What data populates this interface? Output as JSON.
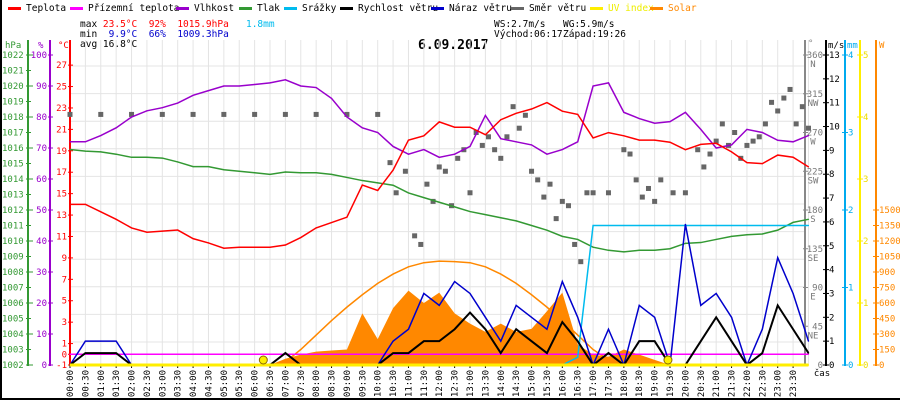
{
  "legend": [
    {
      "label": "Teplota",
      "color": "#ff0000"
    },
    {
      "label": "Přízemní teplota",
      "color": "#ff00ff"
    },
    {
      "label": "Vlhkost",
      "color": "#9900cc"
    },
    {
      "label": "Tlak",
      "color": "#339933"
    },
    {
      "label": "Srážky",
      "color": "#00bbee"
    },
    {
      "label": "Rychlost větru",
      "color": "#000000"
    },
    {
      "label": "Náraz větru",
      "color": "#0000cc"
    },
    {
      "label": "Směr větru",
      "color": "#666666"
    },
    {
      "label": "UV index",
      "color": "#ffee00"
    },
    {
      "label": "Solar",
      "color": "#ff8800"
    }
  ],
  "stats": {
    "max_label": "max",
    "max_temp": "23.5°C",
    "max_hum": "92%",
    "max_press": "1015.9hPa",
    "max_rain": "1.8mm",
    "min_label": "min",
    "min_temp": "9.9°C",
    "min_hum": "66%",
    "min_press": "1009.3hPa",
    "avg_label": "avg",
    "avg_temp": "16.8°C",
    "ws": "WS:2.7m/s",
    "wg": "WG:5.9m/s",
    "sunrise": "Východ:06:17",
    "sunset": "Západ:19:26"
  },
  "chart_data": {
    "type": "line",
    "title": "6.09.2017",
    "xlabel": "čas",
    "x_ticks": [
      "00:00",
      "00:30",
      "01:00",
      "01:30",
      "02:00",
      "02:30",
      "03:00",
      "03:30",
      "04:00",
      "04:30",
      "05:00",
      "05:30",
      "06:00",
      "06:30",
      "07:00",
      "07:30",
      "08:00",
      "08:30",
      "09:00",
      "09:30",
      "10:00",
      "10:30",
      "11:00",
      "11:30",
      "12:00",
      "12:30",
      "13:00",
      "13:30",
      "14:00",
      "14:30",
      "15:00",
      "15:30",
      "16:00",
      "16:30",
      "17:00",
      "17:30",
      "18:00",
      "18:30",
      "19:00",
      "19:30",
      "20:00",
      "20:30",
      "21:00",
      "21:30",
      "22:00",
      "22:30",
      "23:00",
      "23:30"
    ],
    "axes": {
      "pressure": {
        "unit": "hPa",
        "range": [
          1002,
          1022
        ],
        "ticks": [
          "1022",
          "1021",
          "1020",
          "1019",
          "1018",
          "1017",
          "1016",
          "1015",
          "1014",
          "1013",
          "1012",
          "1011",
          "1010",
          "1009",
          "1008",
          "1007",
          "1006",
          "1005",
          "1004",
          "1003",
          "1002"
        ]
      },
      "humidity": {
        "unit": "%",
        "range": [
          0,
          100
        ],
        "ticks": [
          "100",
          "90",
          "80",
          "70",
          "60",
          "50",
          "40",
          "30",
          "20",
          "10",
          "0"
        ]
      },
      "temperature": {
        "unit": "°C",
        "range": [
          -1,
          28
        ],
        "ticks": [
          "27",
          "25",
          "23",
          "21",
          "19",
          "17",
          "15",
          "13",
          "11",
          "9",
          "7",
          "5",
          "3",
          "1",
          "0",
          "-1"
        ]
      },
      "direction": {
        "unit": "°",
        "range": [
          0,
          360
        ],
        "ticks": [
          {
            "v": "360",
            "d": "N"
          },
          {
            "v": "315",
            "d": "NW"
          },
          {
            "v": "270",
            "d": "W"
          },
          {
            "v": "225",
            "d": "SW"
          },
          {
            "v": "180",
            "d": "S"
          },
          {
            "v": "135",
            "d": "SE"
          },
          {
            "v": "90",
            "d": "E"
          },
          {
            "v": "45",
            "d": "NE"
          },
          {
            "v": "0",
            "d": ""
          }
        ]
      },
      "wind": {
        "unit": "m/s",
        "range": [
          0,
          13
        ],
        "ticks": [
          "13",
          "12",
          "11",
          "10",
          "9",
          "8",
          "7",
          "6",
          "5",
          "4",
          "3",
          "2",
          "1",
          "0"
        ]
      },
      "rain": {
        "unit": "mm",
        "range": [
          0,
          4
        ],
        "ticks": [
          "4",
          "3",
          "2",
          "1",
          "0"
        ]
      },
      "uv": {
        "unit": "",
        "range": [
          0,
          5
        ],
        "ticks": [
          "5",
          "4",
          "3",
          "2",
          "1",
          "0"
        ]
      },
      "solar": {
        "unit": "W",
        "range": [
          0,
          3000
        ],
        "ticks": [
          "1500",
          "1350",
          "1200",
          "1050",
          "900",
          "750",
          "600",
          "450",
          "300",
          "150",
          "0"
        ]
      }
    },
    "x_hours_step": 0.5,
    "series": [
      {
        "name": "Teplota",
        "axis": "temperature",
        "color": "#ff0000",
        "values": [
          14.0,
          14.0,
          13.3,
          12.6,
          11.8,
          11.4,
          11.5,
          11.6,
          10.8,
          10.4,
          9.9,
          10.0,
          10.0,
          10.0,
          10.2,
          10.9,
          11.8,
          12.3,
          12.8,
          15.8,
          15.3,
          17.2,
          20.0,
          20.4,
          21.7,
          21.2,
          21.2,
          20.5,
          21.9,
          22.5,
          22.9,
          23.5,
          22.7,
          22.4,
          20.2,
          20.7,
          20.4,
          20.0,
          20.0,
          19.8,
          19.1,
          19.6,
          19.7,
          18.9,
          17.9,
          17.8,
          18.6,
          18.4,
          17.5
        ]
      },
      {
        "name": "Přízemní teplota",
        "axis": "temperature",
        "color": "#ff00ff",
        "values": [
          0,
          0,
          0,
          0,
          0,
          0,
          0,
          0,
          0,
          0,
          0,
          0,
          0,
          0,
          0,
          0,
          0,
          0,
          0,
          0,
          0,
          0,
          0,
          0,
          0,
          0,
          0,
          0,
          0,
          0,
          0,
          0,
          0,
          0,
          0,
          0,
          0,
          0,
          0,
          0,
          0,
          0,
          0,
          0,
          0,
          0,
          0,
          0,
          0
        ]
      },
      {
        "name": "Vlhkost",
        "axis": "humidity",
        "color": "#9900cc",
        "values": [
          72,
          72,
          74,
          76.5,
          80,
          82,
          83,
          84.5,
          87,
          88.5,
          90,
          90,
          90.5,
          91,
          92,
          90,
          89.5,
          86,
          80,
          76.5,
          75,
          70.5,
          68,
          69.5,
          67,
          68,
          70.5,
          80.5,
          73,
          72,
          71,
          68,
          69.5,
          72,
          90,
          91,
          81.5,
          79.5,
          78,
          78.5,
          81.5,
          76,
          70,
          71,
          76,
          75,
          72.5,
          72,
          74
        ]
      },
      {
        "name": "Tlak",
        "axis": "pressure",
        "color": "#339933",
        "values": [
          1015.9,
          1015.8,
          1015.75,
          1015.6,
          1015.4,
          1015.4,
          1015.35,
          1015.1,
          1014.8,
          1014.8,
          1014.6,
          1014.5,
          1014.4,
          1014.3,
          1014.45,
          1014.4,
          1014.4,
          1014.3,
          1014.1,
          1013.9,
          1013.75,
          1013.6,
          1013.1,
          1012.8,
          1012.5,
          1012.2,
          1011.9,
          1011.7,
          1011.5,
          1011.3,
          1011.0,
          1010.7,
          1010.3,
          1010.1,
          1009.6,
          1009.4,
          1009.3,
          1009.4,
          1009.4,
          1009.5,
          1009.85,
          1009.9,
          1010.1,
          1010.3,
          1010.4,
          1010.45,
          1010.7,
          1011.2,
          1011.4
        ]
      },
      {
        "name": "Srážky",
        "axis": "rain",
        "color": "#00bbee",
        "values": [
          0,
          0,
          0,
          0,
          0,
          0,
          0,
          0,
          0,
          0,
          0,
          0,
          0,
          0,
          0,
          0,
          0,
          0,
          0,
          0,
          0,
          0,
          0,
          0,
          0,
          0,
          0,
          0,
          0,
          0,
          0,
          0,
          0,
          0.1,
          1.8,
          1.8,
          1.8,
          1.8,
          1.8,
          1.8,
          1.8,
          1.8,
          1.8,
          1.8,
          1.8,
          1.8,
          1.8,
          1.8,
          1.8
        ]
      },
      {
        "name": "Rychlost větru",
        "axis": "wind",
        "color": "#000000",
        "values": [
          0,
          0.5,
          0.5,
          0.5,
          0,
          0,
          0,
          0,
          0,
          0,
          0,
          0,
          0,
          0,
          0.5,
          0,
          0,
          0,
          0,
          0,
          0,
          0.5,
          0.5,
          1,
          1,
          1.5,
          2.2,
          1.5,
          0.5,
          1.5,
          1,
          0.5,
          1.8,
          1,
          0,
          0.5,
          0,
          1,
          1,
          0,
          0,
          1,
          2,
          1,
          0,
          0.5,
          2.5,
          1.5,
          0.5
        ]
      },
      {
        "name": "Náraz větru",
        "axis": "wind",
        "color": "#0000cc",
        "values": [
          0,
          1,
          1,
          1,
          0,
          0,
          0,
          0,
          0,
          0,
          0,
          0,
          0,
          0,
          0,
          0,
          0,
          0,
          0,
          0,
          0,
          1,
          1.5,
          3,
          2.5,
          3.5,
          3,
          2,
          1,
          2.5,
          2,
          1.5,
          3.5,
          2,
          0,
          1.5,
          0,
          2.5,
          2,
          0,
          5.9,
          2.5,
          3,
          2,
          0,
          1.5,
          4.5,
          3,
          1
        ]
      },
      {
        "name": "UV index",
        "axis": "uv",
        "color": "#ffee00",
        "values": [
          0,
          0,
          0,
          0,
          0,
          0,
          0,
          0,
          0,
          0,
          0,
          0,
          0,
          0,
          0,
          0,
          0,
          0,
          0,
          0,
          0,
          0,
          0,
          0,
          0,
          0,
          0,
          0,
          0,
          0,
          0,
          0,
          0,
          0,
          0,
          0,
          0,
          0,
          0,
          0,
          0,
          0,
          0,
          0,
          0,
          0,
          0,
          0,
          0
        ]
      },
      {
        "name": "Solar",
        "axis": "solar",
        "color": "#ff8800",
        "type": "area",
        "values": [
          0,
          0,
          0,
          0,
          0,
          0,
          0,
          0,
          0,
          0,
          0,
          0,
          0,
          0,
          60,
          100,
          130,
          140,
          150,
          500,
          250,
          550,
          720,
          600,
          700,
          500,
          400,
          320,
          400,
          320,
          350,
          520,
          700,
          200,
          100,
          80,
          150,
          100,
          50,
          0,
          0,
          0,
          0,
          0,
          0,
          0,
          0,
          0,
          0
        ]
      },
      {
        "name": "Solar max",
        "axis": "solar",
        "color": "#ff8800",
        "values": [
          0,
          0,
          0,
          0,
          0,
          0,
          0,
          0,
          0,
          0,
          0,
          0,
          0,
          0,
          30,
          150,
          290,
          430,
          560,
          680,
          790,
          880,
          950,
          990,
          1005,
          1000,
          990,
          950,
          880,
          790,
          680,
          560,
          430,
          290,
          150,
          50,
          0,
          0,
          0,
          0,
          0,
          0,
          0,
          0,
          0,
          0,
          0,
          0,
          0
        ]
      }
    ],
    "direction_points": [
      [
        0,
        291
      ],
      [
        1,
        291
      ],
      [
        2,
        291
      ],
      [
        3,
        291
      ],
      [
        4,
        291
      ],
      [
        5,
        291
      ],
      [
        6,
        291
      ],
      [
        7,
        291
      ],
      [
        8,
        291
      ],
      [
        9,
        291
      ],
      [
        10,
        291
      ],
      [
        10.4,
        235
      ],
      [
        10.6,
        200
      ],
      [
        10.9,
        225
      ],
      [
        11.2,
        150
      ],
      [
        11.4,
        140
      ],
      [
        11.6,
        210
      ],
      [
        11.8,
        190
      ],
      [
        12.0,
        230
      ],
      [
        12.2,
        225
      ],
      [
        12.4,
        185
      ],
      [
        12.6,
        240
      ],
      [
        12.8,
        250
      ],
      [
        13.0,
        200
      ],
      [
        13.2,
        270
      ],
      [
        13.4,
        255
      ],
      [
        13.6,
        265
      ],
      [
        13.8,
        250
      ],
      [
        14.0,
        240
      ],
      [
        14.2,
        265
      ],
      [
        14.4,
        300
      ],
      [
        14.6,
        275
      ],
      [
        14.8,
        290
      ],
      [
        15.0,
        225
      ],
      [
        15.2,
        215
      ],
      [
        15.4,
        195
      ],
      [
        15.6,
        210
      ],
      [
        15.8,
        170
      ],
      [
        16.0,
        190
      ],
      [
        16.2,
        185
      ],
      [
        16.4,
        140
      ],
      [
        16.6,
        120
      ],
      [
        16.8,
        200
      ],
      [
        17.0,
        200
      ],
      [
        17.5,
        200
      ],
      [
        18.0,
        250
      ],
      [
        18.2,
        245
      ],
      [
        18.4,
        215
      ],
      [
        18.6,
        195
      ],
      [
        18.8,
        205
      ],
      [
        19.0,
        190
      ],
      [
        19.2,
        215
      ],
      [
        19.6,
        200
      ],
      [
        20.0,
        200
      ],
      [
        20.4,
        250
      ],
      [
        20.6,
        230
      ],
      [
        20.8,
        245
      ],
      [
        21.0,
        260
      ],
      [
        21.2,
        280
      ],
      [
        21.4,
        255
      ],
      [
        21.6,
        270
      ],
      [
        21.8,
        240
      ],
      [
        22.0,
        255
      ],
      [
        22.2,
        260
      ],
      [
        22.4,
        265
      ],
      [
        22.6,
        280
      ],
      [
        22.8,
        305
      ],
      [
        23.0,
        295
      ],
      [
        23.2,
        310
      ],
      [
        23.4,
        320
      ],
      [
        23.6,
        280
      ],
      [
        23.8,
        300
      ],
      [
        24,
        275
      ]
    ],
    "sun_events_hours": [
      6.283,
      19.433
    ],
    "grid": true
  }
}
